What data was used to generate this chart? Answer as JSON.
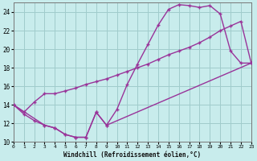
{
  "xlabel": "Windchill (Refroidissement éolien,°C)",
  "bg_color": "#c8ecec",
  "grid_color": "#a0cccc",
  "line_color": "#993399",
  "xlim": [
    0,
    23
  ],
  "ylim": [
    10,
    25
  ],
  "xticks": [
    0,
    1,
    2,
    3,
    4,
    5,
    6,
    7,
    8,
    9,
    10,
    11,
    12,
    13,
    14,
    15,
    16,
    17,
    18,
    19,
    20,
    21,
    22,
    23
  ],
  "yticks": [
    10,
    12,
    14,
    16,
    18,
    20,
    22,
    24
  ],
  "line1_x": [
    0,
    1,
    2,
    3,
    4,
    5,
    6,
    7,
    8,
    9,
    10,
    11,
    12,
    13,
    14,
    15,
    16,
    17,
    18,
    19,
    20,
    21,
    22,
    23
  ],
  "line1_y": [
    14.0,
    13.0,
    12.3,
    11.8,
    11.5,
    10.8,
    10.5,
    10.5,
    13.2,
    11.8,
    13.5,
    16.2,
    18.4,
    20.5,
    22.6,
    24.3,
    24.8,
    24.7,
    24.5,
    24.7,
    23.8,
    19.8,
    18.5,
    18.5
  ],
  "line2_x": [
    0,
    1,
    2,
    3,
    4,
    5,
    6,
    7,
    8,
    9,
    10,
    11,
    12,
    13,
    14,
    15,
    16,
    17,
    18,
    19,
    20,
    21,
    22,
    23
  ],
  "line2_y": [
    14.0,
    13.2,
    14.3,
    15.2,
    15.2,
    15.5,
    15.8,
    16.2,
    16.5,
    16.8,
    17.2,
    17.6,
    18.0,
    18.4,
    18.9,
    19.4,
    19.8,
    20.2,
    20.7,
    21.3,
    22.0,
    22.5,
    23.0,
    18.5
  ],
  "line3_x": [
    0,
    3,
    4,
    5,
    6,
    7,
    8,
    9,
    23
  ],
  "line3_y": [
    14.0,
    11.8,
    11.5,
    10.8,
    10.5,
    10.5,
    13.2,
    11.8,
    18.5
  ],
  "markersize": 2.5,
  "linewidth": 1.0
}
